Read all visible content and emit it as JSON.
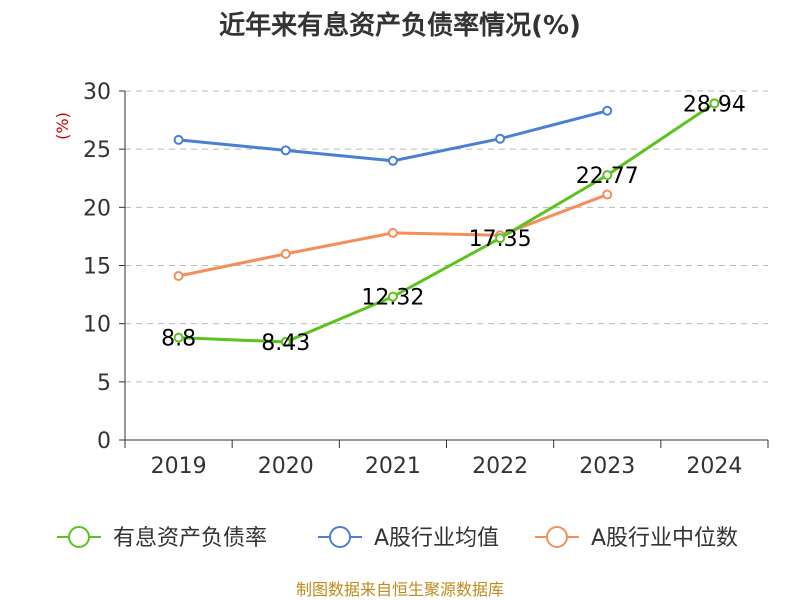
{
  "chart_data": {
    "type": "line",
    "title": "近年来有息资产负债率情况(%)",
    "ylabel": "(%)",
    "xlabel": "",
    "categories": [
      "2019",
      "2020",
      "2021",
      "2022",
      "2023",
      "2024"
    ],
    "ylim": [
      0,
      30
    ],
    "yticks": [
      0,
      5,
      10,
      15,
      20,
      25,
      30
    ],
    "grid": true,
    "legend_position": "bottom",
    "series": [
      {
        "name": "有息资产负债率",
        "color": "#5cc21e",
        "values": [
          8.8,
          8.43,
          12.32,
          17.35,
          22.77,
          28.94
        ],
        "labels": [
          "8.8",
          "8.43",
          "12.32",
          "17.35",
          "22.77",
          "28.94"
        ]
      },
      {
        "name": "A股行业均值",
        "color": "#4a7fd4",
        "values": [
          25.8,
          24.9,
          24.0,
          25.9,
          28.3,
          null
        ]
      },
      {
        "name": "A股行业中位数",
        "color": "#f58f5a",
        "values": [
          14.1,
          16.0,
          17.8,
          17.6,
          21.1,
          null
        ]
      }
    ],
    "source": "制图数据来自恒生聚源数据库"
  }
}
